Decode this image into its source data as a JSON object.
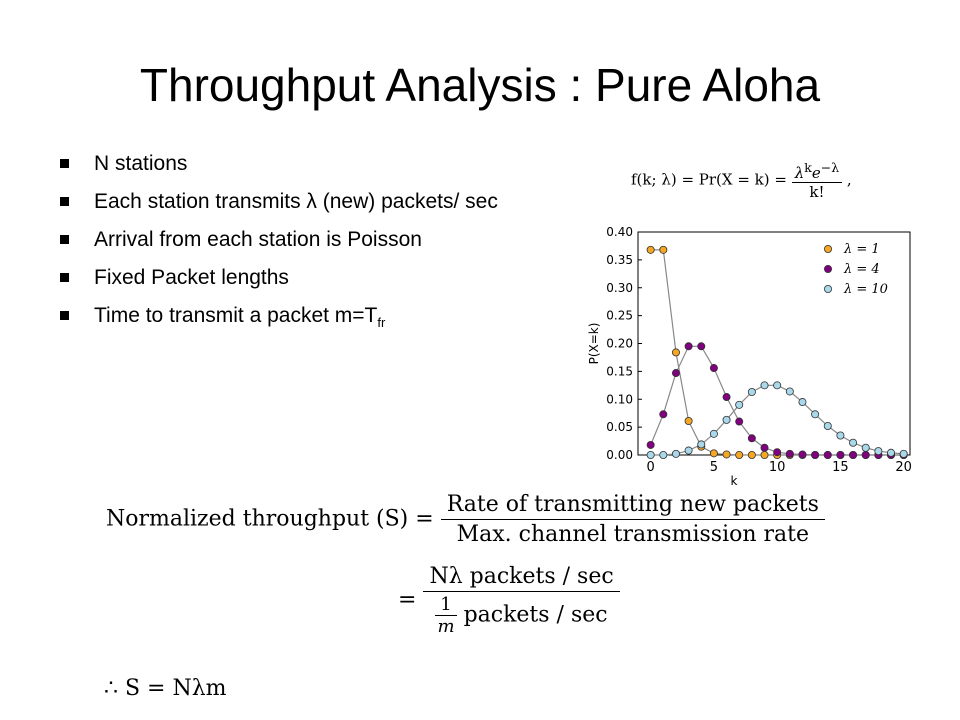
{
  "title": "Throughput Analysis : Pure Aloha",
  "bullets": [
    "N stations",
    "Each station transmits λ (new) packets/ sec",
    "Arrival from each station is Poisson",
    "Fixed Packet lengths",
    "Time to transmit a packet m=T"
  ],
  "bullet_subscript": "fr",
  "pmf_formula": {
    "lhs": "f(k; λ) = Pr(X = k) =",
    "numerator": "λ",
    "numerator_sup": "k",
    "numerator_e": "e",
    "numerator_e_sup": "−λ",
    "denominator": "k!",
    "trail": ","
  },
  "chart_data": {
    "type": "line",
    "xlabel": "k",
    "ylabel": "P(X=k)",
    "xlim": [
      -1,
      20.5
    ],
    "ylim": [
      0,
      0.4
    ],
    "xticks": [
      0,
      5,
      10,
      15,
      20
    ],
    "yticks": [
      "0.00",
      "0.05",
      "0.10",
      "0.15",
      "0.20",
      "0.25",
      "0.30",
      "0.35",
      "0.40"
    ],
    "legend_position": "top-right",
    "x": [
      0,
      1,
      2,
      3,
      4,
      5,
      6,
      7,
      8,
      9,
      10,
      11,
      12,
      13,
      14,
      15,
      16,
      17,
      18,
      19,
      20
    ],
    "series": [
      {
        "name": "λ = 1",
        "color": "#f5a623",
        "values": [
          0.368,
          0.368,
          0.184,
          0.061,
          0.015,
          0.003,
          0.001,
          0,
          0,
          0,
          0,
          0,
          0,
          0,
          0,
          0,
          0,
          0,
          0,
          0,
          0
        ]
      },
      {
        "name": "λ = 4",
        "color": "#800080",
        "values": [
          0.018,
          0.073,
          0.147,
          0.195,
          0.195,
          0.156,
          0.104,
          0.06,
          0.03,
          0.013,
          0.005,
          0.002,
          0.001,
          0,
          0,
          0,
          0,
          0,
          0,
          0,
          0
        ]
      },
      {
        "name": "λ = 10",
        "color": "#a8d8ea",
        "values": [
          0,
          0,
          0.002,
          0.008,
          0.019,
          0.038,
          0.063,
          0.09,
          0.113,
          0.125,
          0.125,
          0.114,
          0.095,
          0.073,
          0.052,
          0.035,
          0.022,
          0.013,
          0.007,
          0.004,
          0.002
        ]
      }
    ]
  },
  "equation1": {
    "lhs": "Normalized throughput (S) =",
    "numerator": "Rate of transmitting new packets",
    "denominator": "Max. channel transmission rate"
  },
  "equation2": {
    "eq": "=",
    "numerator": "Nλ packets / sec",
    "den_frac_num": "1",
    "den_frac_den": "m",
    "den_text": "packets / sec"
  },
  "equation3": "∴ S = Nλm"
}
